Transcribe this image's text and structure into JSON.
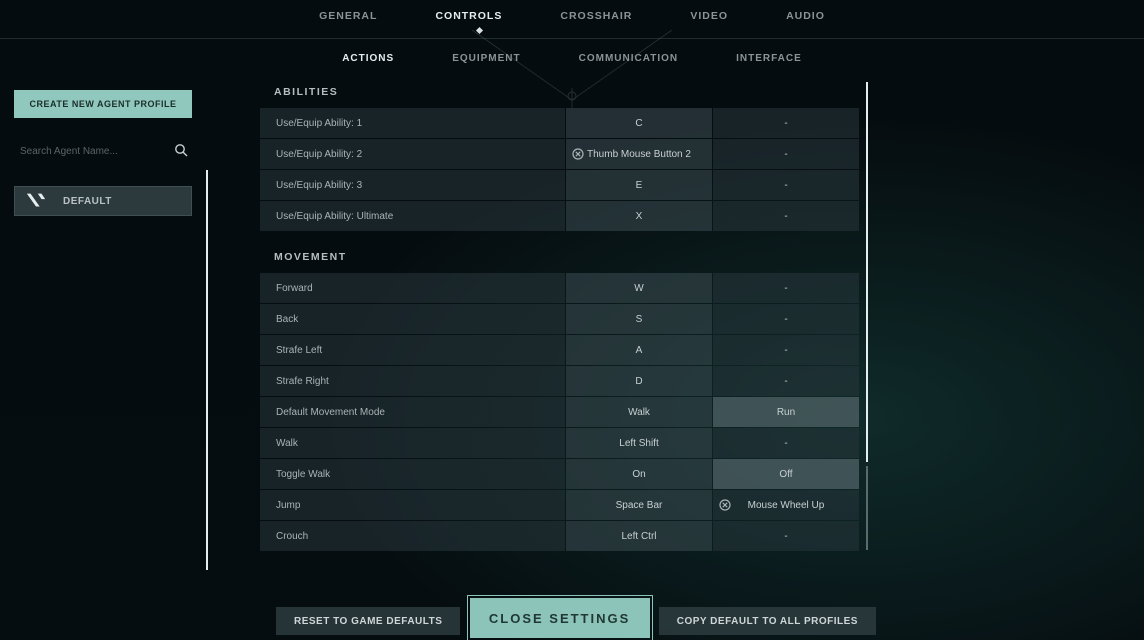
{
  "colors": {
    "accent": "#90c8be",
    "text": "#9aa3a8",
    "text_bright": "#e8eef0",
    "row_bg": "rgba(40,55,60,0.55)"
  },
  "tabs_main": [
    "GENERAL",
    "CONTROLS",
    "CROSSHAIR",
    "VIDEO",
    "AUDIO"
  ],
  "tabs_main_active": 1,
  "tabs_sub": [
    "ACTIONS",
    "EQUIPMENT",
    "COMMUNICATION",
    "INTERFACE"
  ],
  "tabs_sub_active": 0,
  "sidebar": {
    "create_label": "CREATE NEW AGENT PROFILE",
    "search_placeholder": "Search Agent Name...",
    "profile_label": "DEFAULT"
  },
  "sections": [
    {
      "title": "ABILITIES",
      "rows": [
        {
          "label": "Use/Equip Ability: 1",
          "prim": "C",
          "sec": "-"
        },
        {
          "label": "Use/Equip Ability: 2",
          "prim": "Thumb Mouse Button 2",
          "sec": "-",
          "prim_clear": true
        },
        {
          "label": "Use/Equip Ability: 3",
          "prim": "E",
          "sec": "-"
        },
        {
          "label": "Use/Equip Ability: Ultimate",
          "prim": "X",
          "sec": "-"
        }
      ]
    },
    {
      "title": "MOVEMENT",
      "rows": [
        {
          "label": "Forward",
          "prim": "W",
          "sec": "-"
        },
        {
          "label": "Back",
          "prim": "S",
          "sec": "-"
        },
        {
          "label": "Strafe Left",
          "prim": "A",
          "sec": "-"
        },
        {
          "label": "Strafe Right",
          "prim": "D",
          "sec": "-"
        },
        {
          "label": "Default Movement Mode",
          "prim": "Walk",
          "sec": "Run",
          "sec_hi": true
        },
        {
          "label": "Walk",
          "prim": "Left Shift",
          "sec": "-"
        },
        {
          "label": "Toggle Walk",
          "prim": "On",
          "sec": "Off",
          "sec_hi": true
        },
        {
          "label": "Jump",
          "prim": "Space Bar",
          "sec": "Mouse Wheel Up",
          "sec_clear": true
        },
        {
          "label": "Crouch",
          "prim": "Left Ctrl",
          "sec": "-"
        }
      ]
    }
  ],
  "buttons": {
    "reset": "RESET TO GAME DEFAULTS",
    "close": "CLOSE SETTINGS",
    "copy": "COPY DEFAULT TO ALL PROFILES"
  }
}
